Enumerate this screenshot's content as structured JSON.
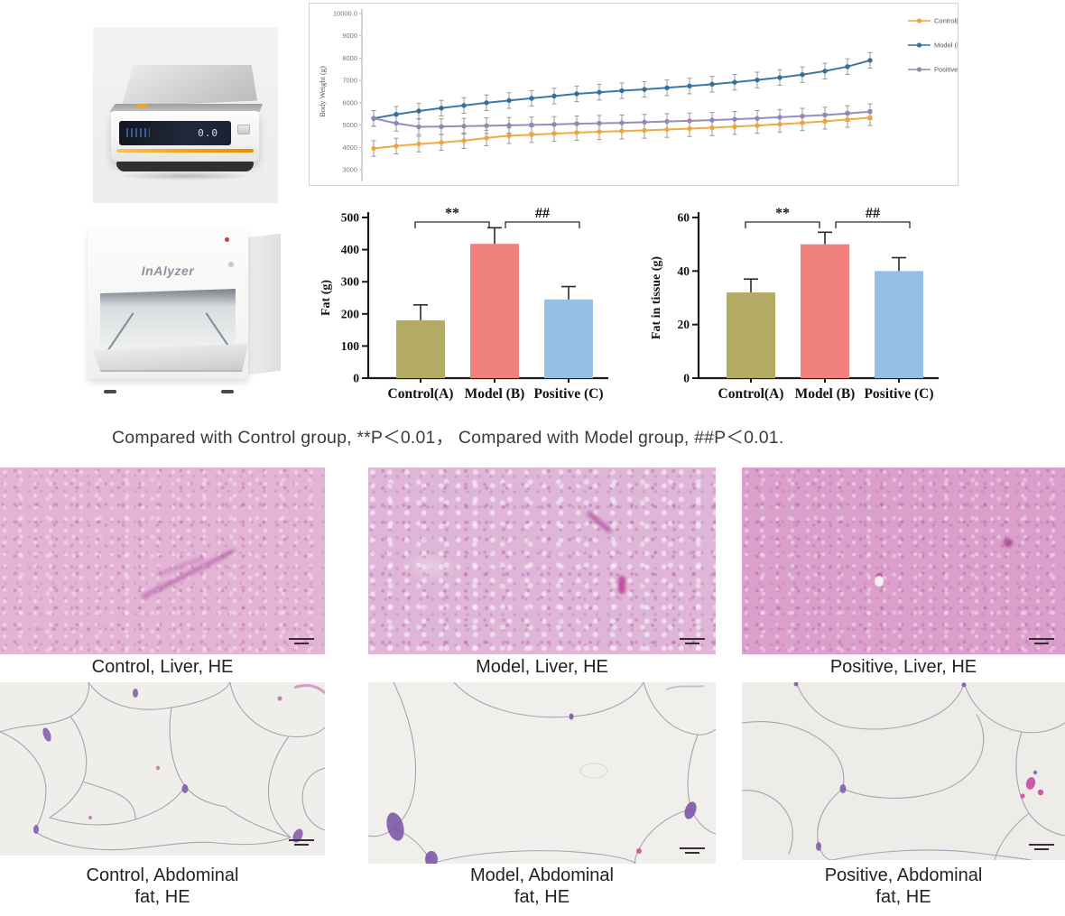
{
  "equipment": {
    "balance_display": "0.0",
    "analyzer_brand": "InAlyzer"
  },
  "stats_caption": "Compared  with Control group, **P＜0.01， Compared  with Model group, ##P＜0.01.",
  "chart_data": [
    {
      "type": "line",
      "title": "",
      "ylabel": "Body Weight (g)",
      "ylim": [
        3000,
        10000
      ],
      "yticks": [
        {
          "v": 10000,
          "label": "10000.0"
        },
        {
          "v": 9000,
          "label": "9000"
        },
        {
          "v": 8000,
          "label": "8000"
        },
        {
          "v": 7000,
          "label": "7000"
        },
        {
          "v": 6000,
          "label": "6000"
        },
        {
          "v": 5000,
          "label": "5000"
        },
        {
          "v": 4000,
          "label": "4000"
        },
        {
          "v": 3000,
          "label": "3000"
        }
      ],
      "error": 350,
      "grid": false,
      "legend_position": "right-inside",
      "series": [
        {
          "name": "Control(A)",
          "color": "#f0a43e",
          "values": [
            3950,
            4060,
            4150,
            4220,
            4300,
            4420,
            4520,
            4570,
            4620,
            4660,
            4700,
            4730,
            4760,
            4800,
            4840,
            4880,
            4930,
            4980,
            5040,
            5100,
            5170,
            5250,
            5330
          ]
        },
        {
          "name": "Model (B)",
          "color": "#33709e",
          "values": [
            5300,
            5480,
            5630,
            5760,
            5880,
            6000,
            6100,
            6200,
            6300,
            6400,
            6470,
            6540,
            6600,
            6670,
            6750,
            6830,
            6920,
            7020,
            7130,
            7260,
            7420,
            7620,
            7900
          ]
        },
        {
          "name": "Positive (C)",
          "color": "#9187b6",
          "values": [
            5300,
            5080,
            4920,
            4930,
            4950,
            4970,
            4990,
            5010,
            5030,
            5060,
            5080,
            5100,
            5130,
            5160,
            5190,
            5220,
            5260,
            5300,
            5350,
            5400,
            5450,
            5520,
            5600
          ]
        }
      ]
    },
    {
      "type": "bar",
      "title": "",
      "ylabel": "Fat (g)",
      "ylim": [
        0,
        500
      ],
      "yticks": [
        0,
        100,
        200,
        300,
        400,
        500
      ],
      "categories": [
        "Control(A)",
        "Model (B)",
        "Positive (C)"
      ],
      "values": [
        180,
        418,
        245
      ],
      "errors": [
        48,
        50,
        40
      ],
      "colors": [
        "#b3aa63",
        "#f0817b",
        "#96bfe6"
      ],
      "annotations": [
        {
          "label": "**",
          "from": 0,
          "to": 1
        },
        {
          "label": "##",
          "from": 1,
          "to": 2
        }
      ]
    },
    {
      "type": "bar",
      "title": "",
      "ylabel": "Fat in tissue (g)",
      "ylim": [
        0,
        60
      ],
      "yticks": [
        0,
        20,
        40,
        60
      ],
      "categories": [
        "Control(A)",
        "Model (B)",
        "Positive (C)"
      ],
      "values": [
        32,
        50,
        40
      ],
      "errors": [
        5,
        4.5,
        5
      ],
      "colors": [
        "#b3aa63",
        "#f0817b",
        "#96bfe6"
      ],
      "annotations": [
        {
          "label": "**",
          "from": 0,
          "to": 1
        },
        {
          "label": "##",
          "from": 1,
          "to": 2
        }
      ]
    }
  ],
  "histology": {
    "liver": [
      {
        "caption": "Control, Liver, HE"
      },
      {
        "caption": "Model, Liver, HE"
      },
      {
        "caption": "Positive, Liver, HE"
      }
    ],
    "fat": [
      {
        "line1": "Control, Abdominal",
        "line2": "fat, HE"
      },
      {
        "line1": "Model, Abdominal",
        "line2": "fat, HE"
      },
      {
        "line1": "Positive, Abdominal",
        "line2": "fat, HE"
      }
    ]
  }
}
